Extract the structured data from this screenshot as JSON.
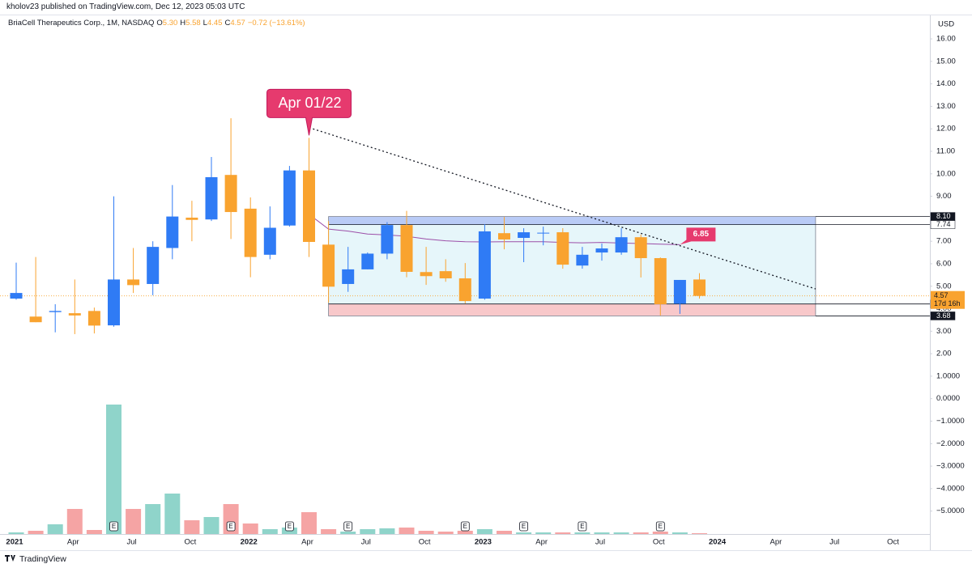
{
  "header": {
    "published": "kholov23 published on TradingView.com, Dec 12, 2023 05:03 UTC",
    "symbol": "BriaCell Therapeutics Corp., 1M, NASDAQ",
    "ohlc": [
      {
        "key": "O",
        "value": "5.30"
      },
      {
        "key": "H",
        "value": "5.58"
      },
      {
        "key": "L",
        "value": "4.45"
      },
      {
        "key": "C",
        "value": "4.57"
      }
    ],
    "change": "−0.72 (−13.61%)"
  },
  "chart_data": {
    "type": "candlestick",
    "currency": "USD",
    "categories": [
      "2021",
      null,
      null,
      "Apr",
      null,
      null,
      "Jul",
      null,
      null,
      "Oct",
      null,
      null,
      "2022",
      null,
      null,
      "Apr",
      null,
      null,
      "Jul",
      null,
      null,
      "Oct",
      null,
      null,
      "2023",
      null,
      null,
      "Apr",
      null,
      null,
      "Jul",
      null,
      null,
      "Oct",
      null,
      null,
      "2024",
      null,
      null,
      "Apr",
      null,
      null,
      "Jul",
      null,
      null,
      "Oct"
    ],
    "open": [
      4.45,
      3.65,
      3.85,
      3.8,
      3.9,
      3.26,
      5.3,
      5.1,
      6.7,
      8.05,
      7.97,
      9.95,
      8.45,
      6.4,
      7.7,
      10.15,
      6.85,
      5.1,
      5.75,
      6.45,
      7.72,
      5.63,
      5.67,
      5.35,
      4.45,
      7.36,
      7.15,
      7.35,
      7.4,
      5.92,
      6.5,
      6.5,
      7.18,
      6.25,
      4.22,
      5.3,
      null,
      null,
      null,
      null,
      null,
      null,
      null,
      null,
      null,
      null
    ],
    "high": [
      6.05,
      6.3,
      4.2,
      5.3,
      4.05,
      9.0,
      6.7,
      7.0,
      9.5,
      8.8,
      10.75,
      12.47,
      8.95,
      8.55,
      10.35,
      11.6,
      7.9,
      6.75,
      6.5,
      7.85,
      8.35,
      6.75,
      6.2,
      6.03,
      7.76,
      8.08,
      7.58,
      7.65,
      7.58,
      6.75,
      6.9,
      7.58,
      7.3,
      6.28,
      5.28,
      5.58,
      null,
      null,
      null,
      null,
      null,
      null,
      null,
      null,
      null,
      null
    ],
    "low": [
      4.4,
      3.4,
      2.95,
      2.87,
      2.9,
      3.2,
      4.7,
      4.6,
      6.2,
      7.0,
      7.9,
      7.1,
      5.4,
      6.2,
      7.65,
      6.3,
      4.27,
      4.75,
      5.75,
      6.2,
      5.4,
      5.06,
      5.2,
      4.23,
      4.4,
      6.64,
      6.07,
      6.82,
      5.78,
      5.78,
      6.14,
      6.4,
      5.39,
      3.7,
      3.77,
      4.45,
      null,
      null,
      null,
      null,
      null,
      null,
      null,
      null,
      null,
      null
    ],
    "close": [
      4.7,
      3.4,
      3.9,
      3.7,
      3.25,
      5.3,
      5.05,
      6.75,
      8.1,
      7.95,
      9.85,
      8.3,
      6.3,
      7.6,
      10.15,
      6.97,
      4.98,
      5.75,
      6.45,
      7.72,
      5.64,
      5.45,
      5.35,
      4.34,
      7.44,
      7.08,
      7.4,
      7.38,
      5.96,
      6.4,
      6.68,
      7.18,
      6.25,
      4.2,
      5.28,
      4.57,
      null,
      null,
      null,
      null,
      null,
      null,
      null,
      null,
      null,
      null
    ],
    "volume": [
      2,
      4,
      12,
      31,
      5,
      160,
      31,
      37,
      50,
      17,
      21,
      37,
      13,
      6,
      8,
      27,
      6,
      3,
      6,
      7,
      8,
      4,
      3,
      4,
      6,
      4,
      2,
      2,
      2,
      2,
      2,
      2,
      2,
      3,
      2,
      1,
      null,
      null,
      null,
      null,
      null,
      null,
      null,
      null,
      null,
      null
    ],
    "volume_lim": [
      0,
      630
    ],
    "ma": [
      null,
      null,
      null,
      null,
      null,
      null,
      null,
      null,
      null,
      null,
      null,
      null,
      null,
      null,
      null,
      8.2,
      7.54,
      7.45,
      7.32,
      7.28,
      7.22,
      7.1,
      7.02,
      6.98,
      6.97,
      6.98,
      6.98,
      6.98,
      6.95,
      6.93,
      6.95,
      6.92,
      6.9,
      6.87,
      6.85,
      null,
      null,
      null,
      null,
      null,
      null,
      null,
      null,
      null,
      null,
      null
    ],
    "up_color": "#2f7bf5",
    "down_color": "#f9a32f",
    "vol_up_color": "#8fd4ca",
    "vol_down_color": "#f5a4a4",
    "ma_color": "#9c4fa8",
    "ylim": [
      -6.02,
      16.65
    ],
    "yticks": [
      {
        "value": 16,
        "label": "16.00"
      },
      {
        "value": 15,
        "label": "15.00"
      },
      {
        "value": 14,
        "label": "14.00"
      },
      {
        "value": 13,
        "label": "13.00"
      },
      {
        "value": 12,
        "label": "12.00"
      },
      {
        "value": 11,
        "label": "11.00"
      },
      {
        "value": 10,
        "label": "10.00"
      },
      {
        "value": 9,
        "label": "9.00"
      },
      {
        "value": 8,
        "label": "8.00"
      },
      {
        "value": 7,
        "label": "7.00"
      },
      {
        "value": 6,
        "label": "6.00"
      },
      {
        "value": 5,
        "label": "5.00"
      },
      {
        "value": 4,
        "label": "4.00"
      },
      {
        "value": 3,
        "label": "3.00"
      },
      {
        "value": 2,
        "label": "2.00"
      },
      {
        "value": 1,
        "label": "1.0000"
      },
      {
        "value": 0,
        "label": "0.0000"
      },
      {
        "value": -1,
        "label": "−1.0000"
      },
      {
        "value": -2,
        "label": "−2.0000"
      },
      {
        "value": -3,
        "label": "−3.0000"
      },
      {
        "value": -4,
        "label": "−4.0000"
      },
      {
        "value": -5,
        "label": "−5.0000"
      }
    ],
    "range_box": [
      8.1,
      7.74,
      4.21,
      3.68
    ],
    "trendline": [
      12.0,
      4.88
    ],
    "callout": "Apr 01/22",
    "ma_label": {
      "value": 6.85,
      "label": "6.85"
    },
    "price_labels": [
      {
        "value": 8.1,
        "label": "8.10",
        "bg": "#131722",
        "fg": "#ffffff"
      },
      {
        "value": 7.74,
        "label": "7.74",
        "bg": "#ffffff",
        "fg": "#131722"
      },
      {
        "value": 4.21,
        "label": "4.21",
        "bg": "#131722",
        "fg": "#ffffff"
      },
      {
        "value": 3.68,
        "label": "3.68",
        "bg": "#131722",
        "fg": "#ffffff"
      }
    ],
    "last_price": {
      "value": 4.57,
      "label": "4.57",
      "countdown": "17d 16h"
    },
    "earnings_label": "E",
    "brand": "TradingView"
  }
}
